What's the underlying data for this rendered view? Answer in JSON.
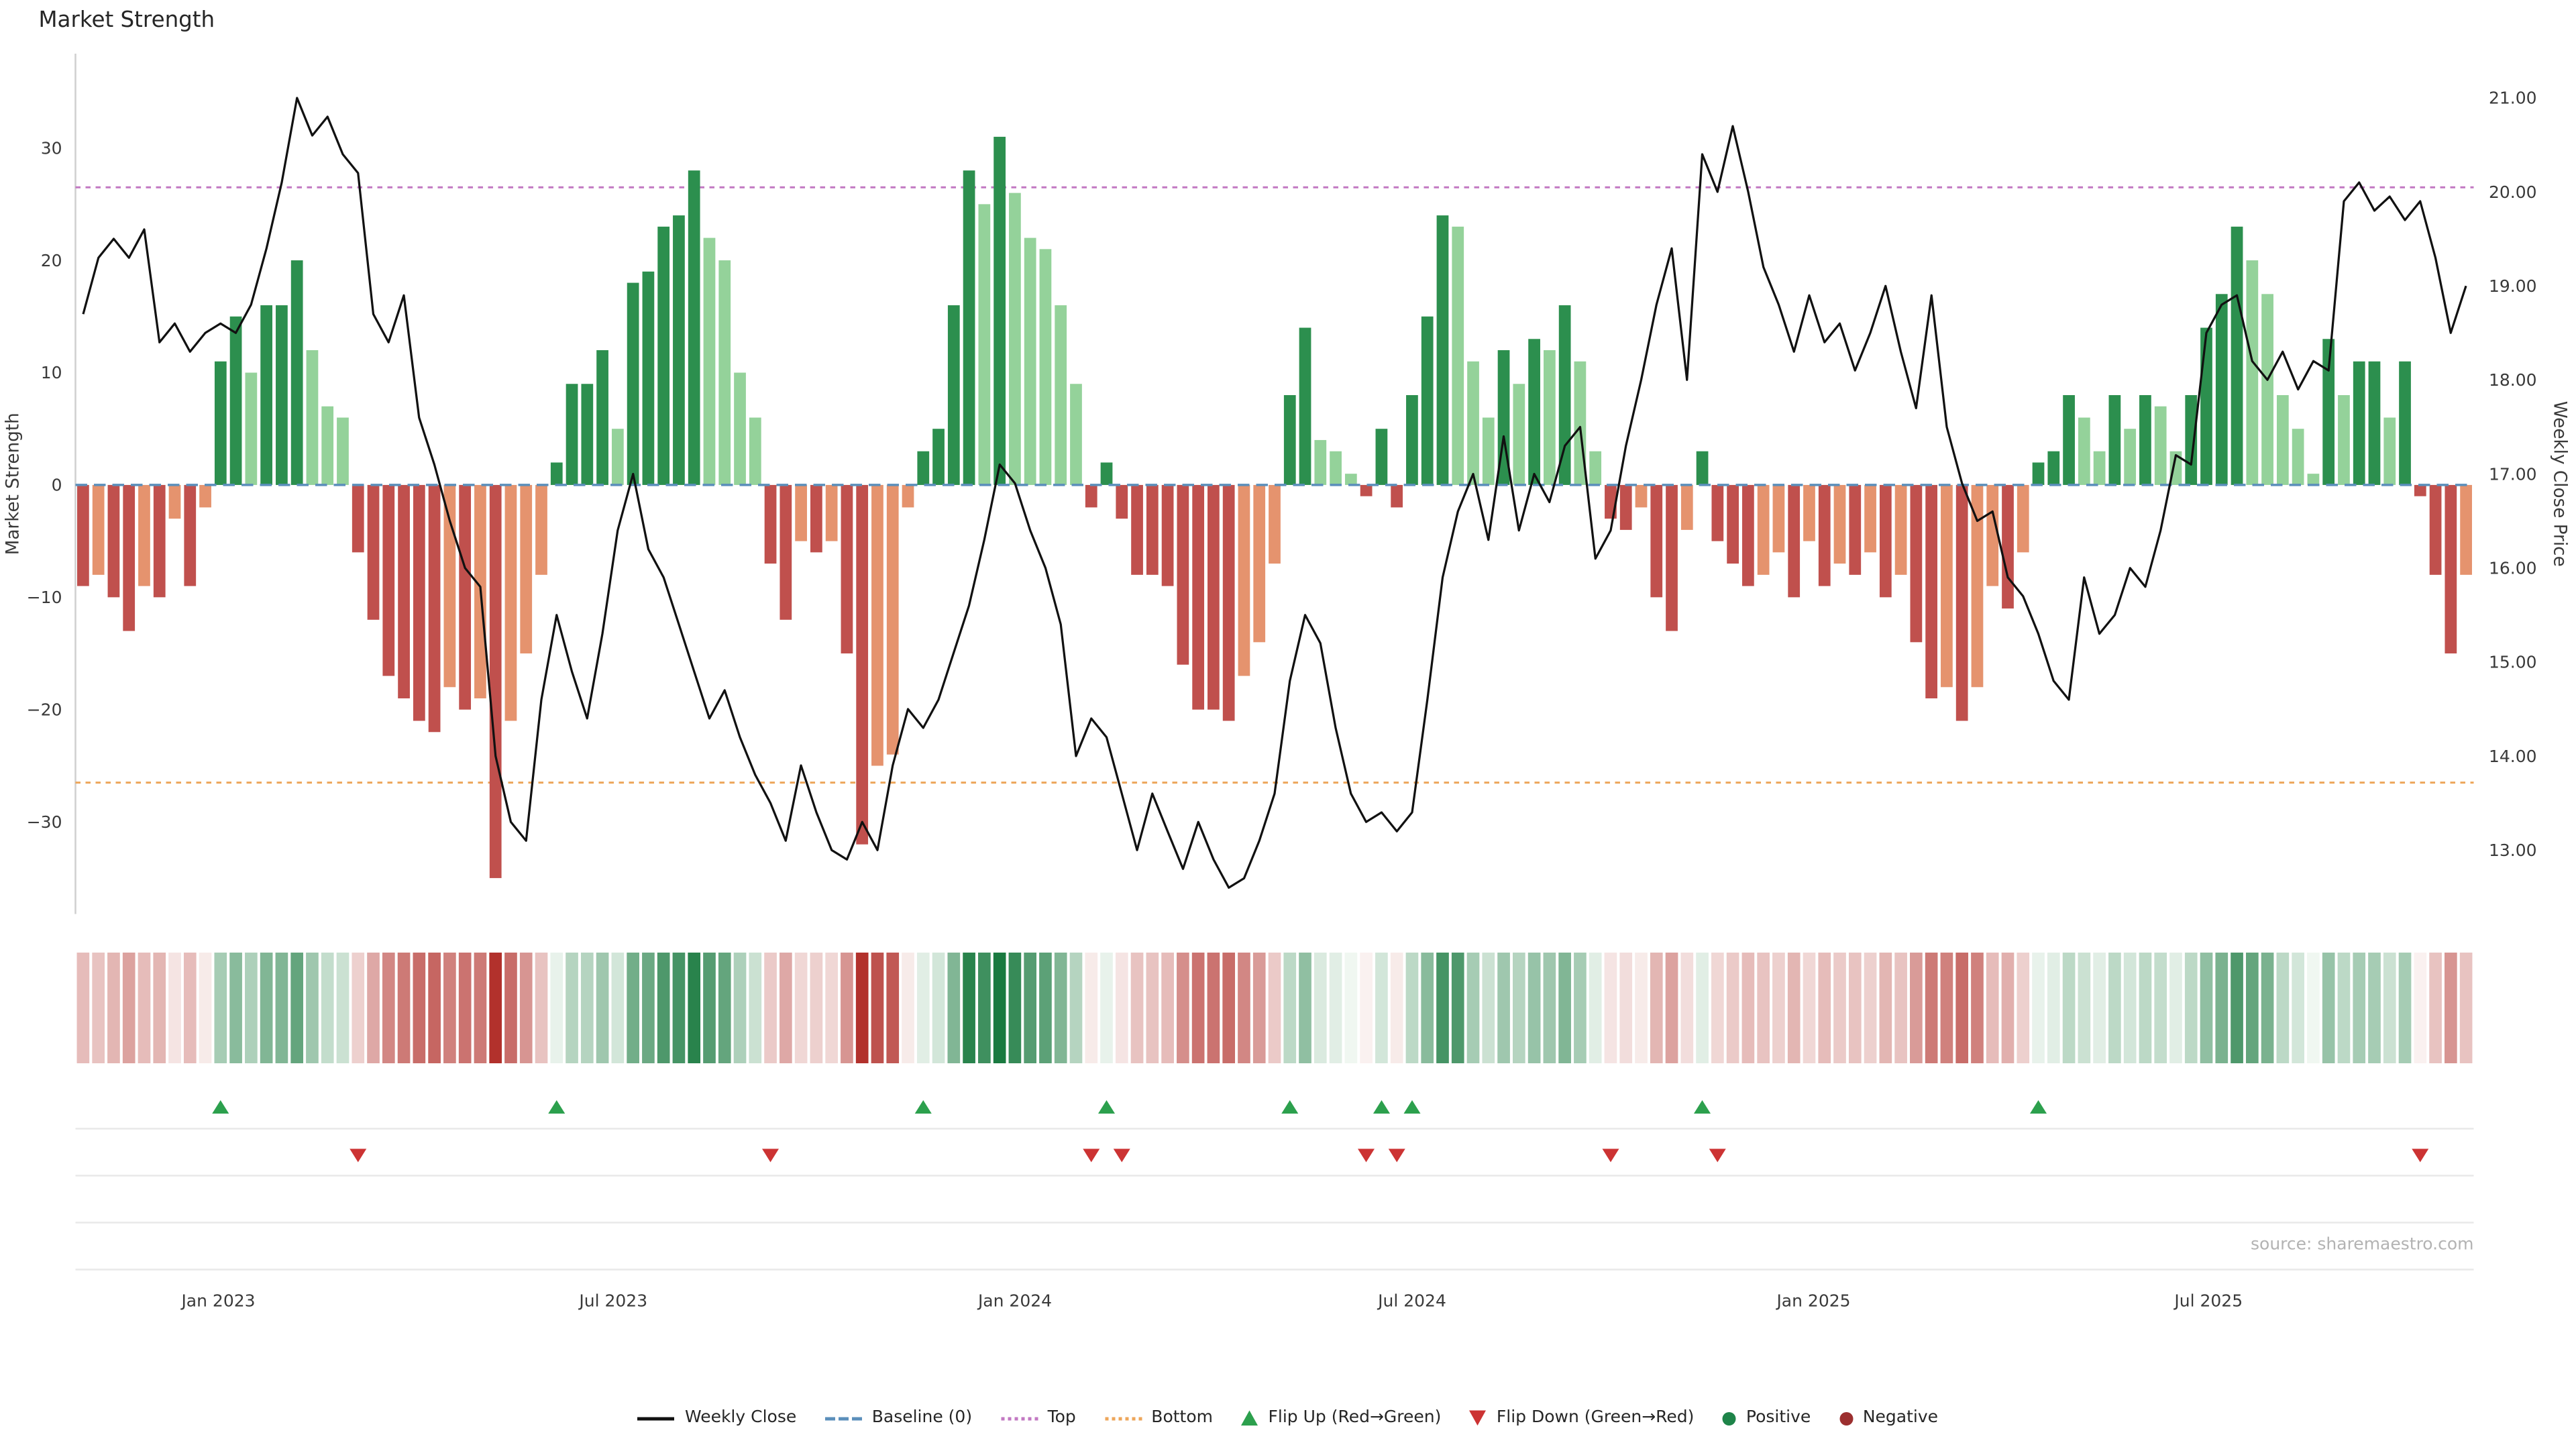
{
  "title": "Market Strength",
  "source_note": "source: sharemaestro.com",
  "axes": {
    "left_label": "Market Strength",
    "right_label": "Weekly Close Price",
    "left_tick_values": [
      30,
      20,
      10,
      0,
      -10,
      -20,
      -30
    ],
    "left_tick_labels": [
      "30",
      "20",
      "10",
      "0",
      "−10",
      "−20",
      "−30"
    ],
    "right_tick_values": [
      21,
      20,
      19,
      18,
      17,
      16,
      15,
      14,
      13
    ],
    "right_tick_labels": [
      "21.00",
      "20.00",
      "19.00",
      "18.00",
      "17.00",
      "16.00",
      "15.00",
      "14.00",
      "13.00"
    ],
    "x_tick_labels": [
      "Jan 2023",
      "Jul 2023",
      "Jan 2024",
      "Jul 2024",
      "Jan 2025",
      "Jul 2025"
    ],
    "x_tick_dates": [
      "2023-01-01",
      "2023-07-01",
      "2024-01-01",
      "2024-07-01",
      "2025-01-01",
      "2025-07-01"
    ]
  },
  "legend": [
    {
      "label": "Weekly Close",
      "type": "line",
      "color": "#111111"
    },
    {
      "label": "Baseline (0)",
      "type": "dashed",
      "color": "#5b8fbb"
    },
    {
      "label": "Top",
      "type": "dotted",
      "color": "#c278c2"
    },
    {
      "label": "Bottom",
      "type": "dotted",
      "color": "#eda65a"
    },
    {
      "label": "Flip Up (Red→Green)",
      "type": "triangle-up",
      "color": "#2ca04d"
    },
    {
      "label": "Flip Down (Green→Red)",
      "type": "triangle-down",
      "color": "#cc3333"
    },
    {
      "label": "Positive",
      "type": "dot",
      "color": "#1e8449"
    },
    {
      "label": "Negative",
      "type": "dot",
      "color": "#9c2f2f"
    }
  ],
  "colors": {
    "bar_pos_strong": "#2c8f4e",
    "bar_pos_weak": "#94d29a",
    "bar_neg_strong": "#c0504d",
    "bar_neg_weak": "#e5936e",
    "weekly_close_line": "#111111",
    "baseline": "#5b8fbb",
    "top_line": "#c278c2",
    "bottom_line": "#eda65a",
    "flip_up": "#2ca04d",
    "flip_down": "#cc3333",
    "heat_pos_max": "#1a7a40",
    "heat_neg_max": "#b2312c"
  },
  "chart_data": {
    "type": "bar+line",
    "title": "Market Strength",
    "x": {
      "start_date": "2022-10-31",
      "step_days": 7,
      "count": 157
    },
    "baseline": 0,
    "top_threshold": 26.5,
    "bottom_threshold": -26.5,
    "left_axis_range": [
      -38.2,
      38.4
    ],
    "right_axis_range": [
      12.32,
      21.47
    ],
    "grid": "off",
    "legend_position": "bottom",
    "series": [
      {
        "name": "Market Strength",
        "type": "bar",
        "axis": "left",
        "values": [
          -9,
          -8,
          -10,
          -13,
          -9,
          -10,
          -3,
          -9,
          -2,
          11,
          15,
          10,
          16,
          16,
          20,
          12,
          7,
          6,
          -6,
          -12,
          -17,
          -19,
          -21,
          -22,
          -18,
          -20,
          -19,
          -35,
          -21,
          -15,
          -8,
          2,
          9,
          9,
          12,
          5,
          18,
          19,
          23,
          24,
          28,
          22,
          20,
          10,
          6,
          -7,
          -12,
          -5,
          -6,
          -5,
          -15,
          -32,
          -25,
          -24,
          -2,
          3,
          5,
          16,
          28,
          25,
          31,
          26,
          22,
          21,
          16,
          9,
          -2,
          2,
          -3,
          -8,
          -8,
          -9,
          -16,
          -20,
          -20,
          -21,
          -17,
          -14,
          -7,
          8,
          14,
          4,
          3,
          1,
          -1,
          5,
          -2,
          8,
          15,
          24,
          23,
          11,
          6,
          12,
          9,
          13,
          12,
          16,
          11,
          3,
          -3,
          -4,
          -2,
          -10,
          -13,
          -4,
          3,
          -5,
          -7,
          -9,
          -8,
          -6,
          -10,
          -5,
          -9,
          -7,
          -8,
          -6,
          -10,
          -8,
          -14,
          -19,
          -18,
          -21,
          -18,
          -9,
          -11,
          -6,
          2,
          3,
          8,
          6,
          3,
          8,
          5,
          8,
          7,
          3,
          8,
          14,
          17,
          23,
          20,
          17,
          8,
          5,
          1,
          13,
          8,
          11,
          11,
          6,
          11,
          -1,
          -8,
          -15,
          -8
        ]
      },
      {
        "name": "Weekly Close",
        "type": "line",
        "axis": "right",
        "values": [
          18.7,
          19.3,
          19.5,
          19.3,
          19.6,
          18.4,
          18.6,
          18.3,
          18.5,
          18.6,
          18.5,
          18.8,
          19.4,
          20.1,
          21.0,
          20.6,
          20.8,
          20.4,
          20.2,
          18.7,
          18.4,
          18.9,
          17.6,
          17.1,
          16.5,
          16.0,
          15.8,
          14.0,
          13.3,
          13.1,
          14.6,
          15.5,
          14.9,
          14.4,
          15.3,
          16.4,
          17.0,
          16.2,
          15.9,
          15.4,
          14.9,
          14.4,
          14.7,
          14.2,
          13.8,
          13.5,
          13.1,
          13.9,
          13.4,
          13.0,
          12.9,
          13.3,
          13.0,
          13.9,
          14.5,
          14.3,
          14.6,
          15.1,
          15.6,
          16.3,
          17.1,
          16.9,
          16.4,
          16.0,
          15.4,
          14.0,
          14.4,
          14.2,
          13.6,
          13.0,
          13.6,
          13.2,
          12.8,
          13.3,
          12.9,
          12.6,
          12.7,
          13.1,
          13.6,
          14.8,
          15.5,
          15.2,
          14.3,
          13.6,
          13.3,
          13.4,
          13.2,
          13.4,
          14.6,
          15.9,
          16.6,
          17.0,
          16.3,
          17.4,
          16.4,
          17.0,
          16.7,
          17.3,
          17.5,
          16.1,
          16.4,
          17.3,
          18.0,
          18.8,
          19.4,
          18.0,
          20.4,
          20.0,
          20.7,
          20.0,
          19.2,
          18.8,
          18.3,
          18.9,
          18.4,
          18.6,
          18.1,
          18.5,
          19.0,
          18.3,
          17.7,
          18.9,
          17.5,
          16.9,
          16.5,
          16.6,
          15.9,
          15.7,
          15.3,
          14.8,
          14.6,
          15.9,
          15.3,
          15.5,
          16.0,
          15.8,
          16.4,
          17.2,
          17.1,
          18.5,
          18.8,
          18.9,
          18.2,
          18.0,
          18.3,
          17.9,
          18.2,
          18.1,
          19.9,
          20.1,
          19.8,
          19.95,
          19.7,
          19.9,
          19.3,
          18.5,
          19.0
        ]
      }
    ],
    "flip_up_indices": [
      9,
      31,
      55,
      67,
      79,
      85,
      87,
      106,
      128
    ],
    "flip_down_indices": [
      18,
      45,
      66,
      68,
      84,
      86,
      100,
      107,
      153
    ]
  }
}
